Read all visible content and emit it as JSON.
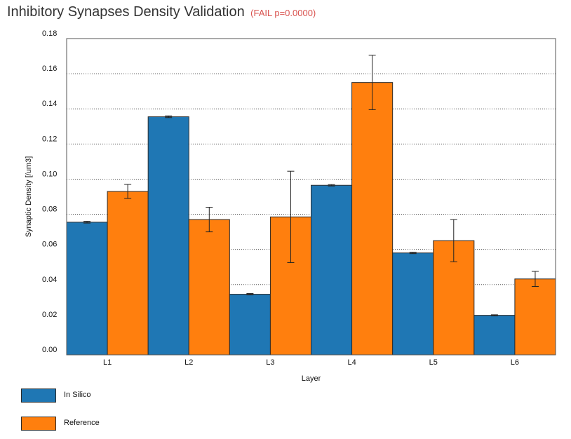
{
  "header": {
    "title": "Inhibitory Synapses Density Validation",
    "status": "(FAIL p=0.0000)"
  },
  "colors": {
    "in_silico": "#1f77b4",
    "reference": "#ff7f0e",
    "status": "#d9534f"
  },
  "chart_data": {
    "type": "bar",
    "title": "Inhibitory Synapses Density Validation",
    "xlabel": "Layer",
    "ylabel": "Synaptic Density [/um3]",
    "ylim": [
      0,
      0.18
    ],
    "yticks": [
      "0.00",
      "0.02",
      "0.04",
      "0.06",
      "0.08",
      "0.10",
      "0.12",
      "0.14",
      "0.16",
      "0.18"
    ],
    "grid": "horizontal dotted",
    "legend_position": "bottom-left",
    "categories": [
      "L1",
      "L2",
      "L3",
      "L4",
      "L5",
      "L6"
    ],
    "series": [
      {
        "name": "In Silico",
        "values": [
          0.0755,
          0.1355,
          0.0345,
          0.0965,
          0.058,
          0.0225
        ],
        "errors": [
          0.0005,
          0.0005,
          0.0004,
          0.0004,
          0.0004,
          0.0003
        ]
      },
      {
        "name": "Reference",
        "values": [
          0.093,
          0.077,
          0.0785,
          0.155,
          0.065,
          0.0432
        ],
        "errors": [
          0.004,
          0.007,
          0.026,
          0.0155,
          0.012,
          0.0043
        ]
      }
    ]
  }
}
